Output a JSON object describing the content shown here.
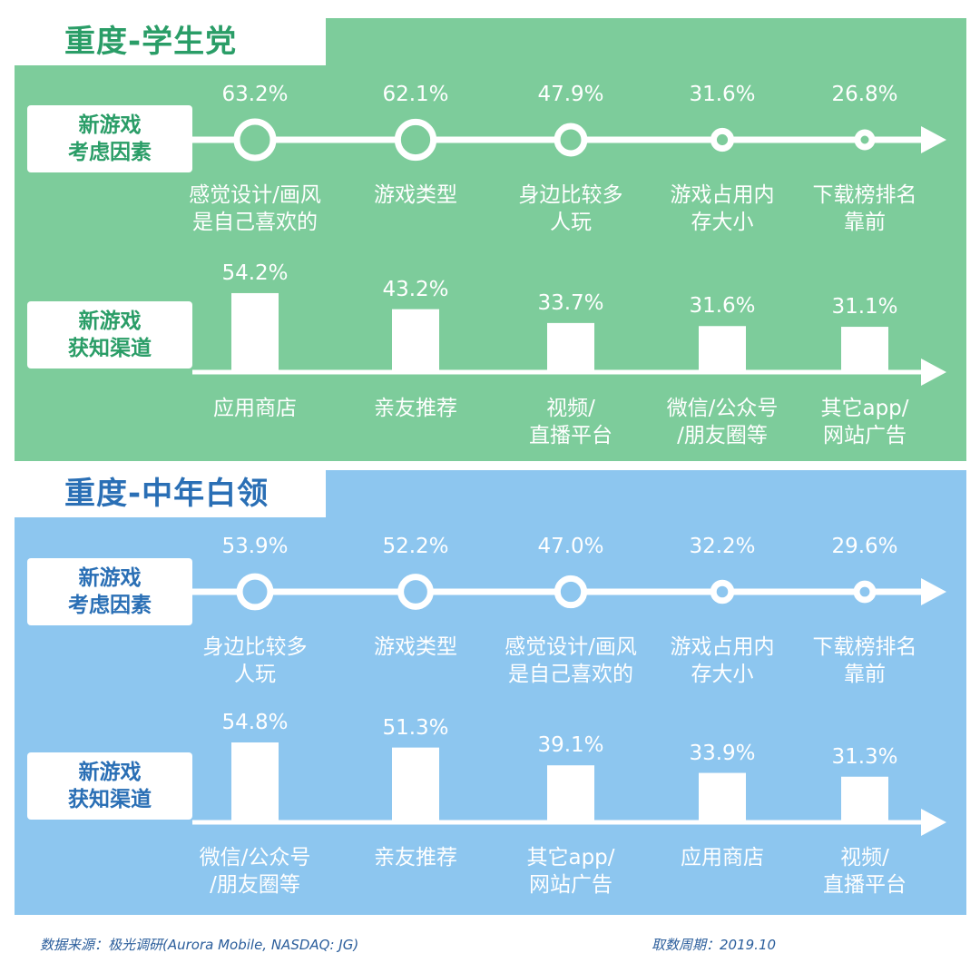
{
  "chart_data": [
    {
      "type": "bubble-timeline",
      "title": "重度-学生党",
      "row_label": [
        "新游戏",
        "考虑因素"
      ],
      "categories": [
        "感觉设计/画风\n是自己喜欢的",
        "游戏类型",
        "身边比较多\n人玩",
        "游戏占用内\n存大小",
        "下载榜排名\n靠前"
      ],
      "values": [
        63.2,
        62.1,
        47.9,
        31.6,
        26.8
      ],
      "labels": [
        "63.2%",
        "62.1%",
        "47.9%",
        "31.6%",
        "26.8%"
      ]
    },
    {
      "type": "bar",
      "title": "重度-学生党",
      "row_label": [
        "新游戏",
        "获知渠道"
      ],
      "categories": [
        "应用商店",
        "亲友推荐",
        "视频/\n直播平台",
        "微信/公众号\n/朋友圈等",
        "其它app/\n网站广告"
      ],
      "values": [
        54.2,
        43.2,
        33.7,
        31.6,
        31.1
      ],
      "labels": [
        "54.2%",
        "43.2%",
        "33.7%",
        "31.6%",
        "31.1%"
      ]
    },
    {
      "type": "bubble-timeline",
      "title": "重度-中年白领",
      "row_label": [
        "新游戏",
        "考虑因素"
      ],
      "categories": [
        "身边比较多\n人玩",
        "游戏类型",
        "感觉设计/画风\n是自己喜欢的",
        "游戏占用内\n存大小",
        "下载榜排名\n靠前"
      ],
      "values": [
        53.9,
        52.2,
        47.0,
        32.2,
        29.6
      ],
      "labels": [
        "53.9%",
        "52.2%",
        "47.0%",
        "32.2%",
        "29.6%"
      ]
    },
    {
      "type": "bar",
      "title": "重度-中年白领",
      "row_label": [
        "新游戏",
        "获知渠道"
      ],
      "categories": [
        "微信/公众号\n/朋友圈等",
        "亲友推荐",
        "其它app/\n网站广告",
        "应用商店",
        "视频/\n直播平台"
      ],
      "values": [
        54.8,
        51.3,
        39.1,
        33.9,
        31.3
      ],
      "labels": [
        "54.8%",
        "51.3%",
        "39.1%",
        "33.9%",
        "31.3%"
      ]
    }
  ],
  "panels": [
    {
      "title": "重度-学生党",
      "color": "#7dcc9b",
      "title_color": "#2a9d67"
    },
    {
      "title": "重度-中年白领",
      "color": "#8dc6ef",
      "title_color": "#2a6fb5"
    }
  ],
  "footer": {
    "source": "数据来源：极光调研(Aurora Mobile, NASDAQ: JG)",
    "period": "取数周期：2019.10"
  }
}
